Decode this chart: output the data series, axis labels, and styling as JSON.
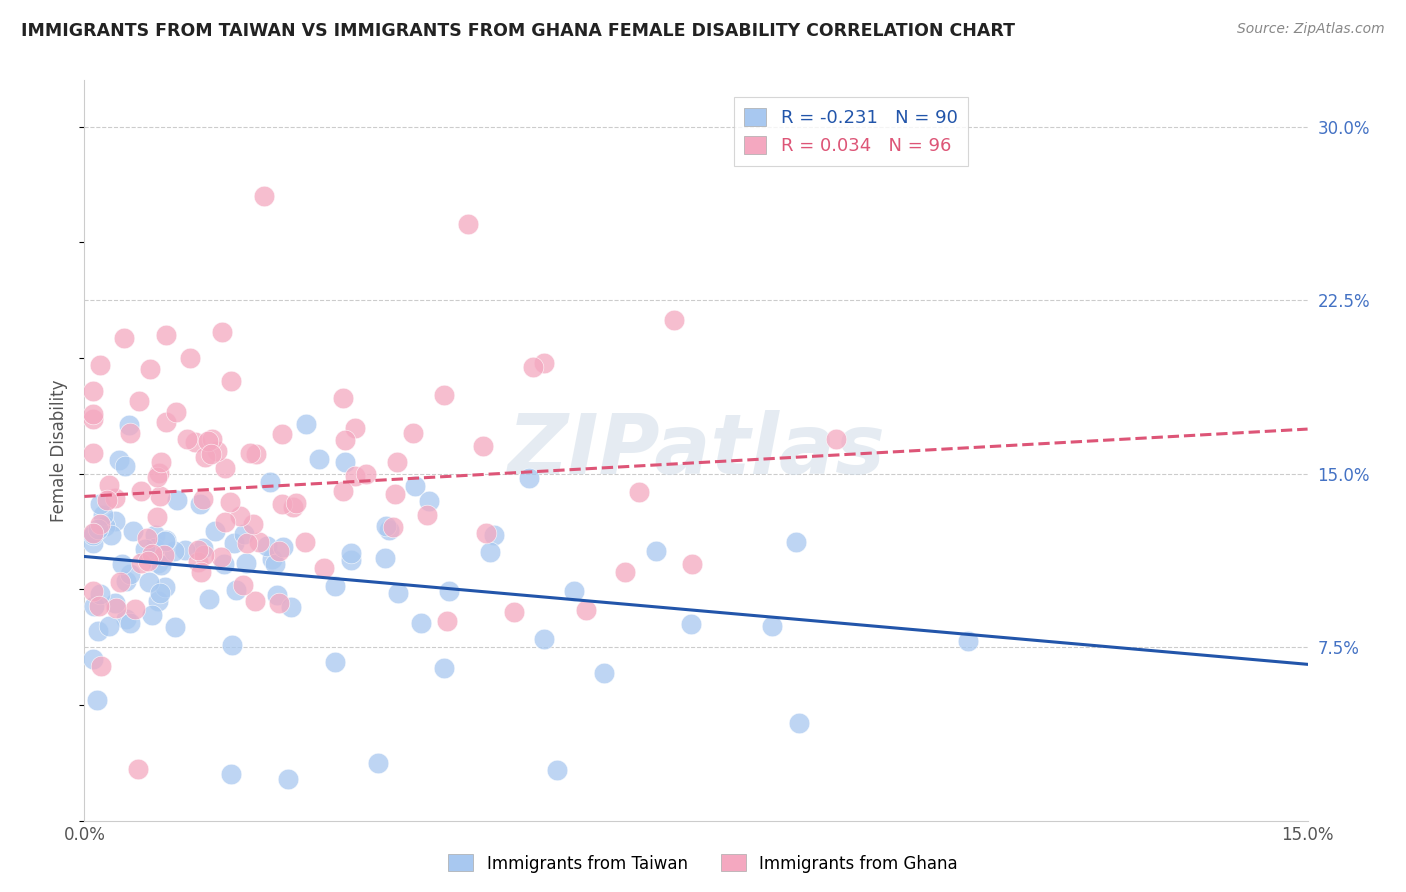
{
  "title": "IMMIGRANTS FROM TAIWAN VS IMMIGRANTS FROM GHANA FEMALE DISABILITY CORRELATION CHART",
  "source": "Source: ZipAtlas.com",
  "ylabel": "Female Disability",
  "xlim": [
    0.0,
    0.15
  ],
  "ylim": [
    0.0,
    0.32
  ],
  "taiwan_color": "#A8C8F0",
  "ghana_color": "#F4A8C0",
  "taiwan_line_color": "#2255AA",
  "ghana_line_color": "#DD5577",
  "taiwan_R": -0.231,
  "taiwan_N": 90,
  "ghana_R": 0.034,
  "ghana_N": 96,
  "watermark": "ZIPatlas",
  "grid_color": "#CCCCCC",
  "title_color": "#222222",
  "source_color": "#888888",
  "ylabel_color": "#555555",
  "tick_color": "#555555",
  "right_tick_color": "#4472C4",
  "legend_text_color_1": "#2255AA",
  "legend_text_color_2": "#DD5577"
}
